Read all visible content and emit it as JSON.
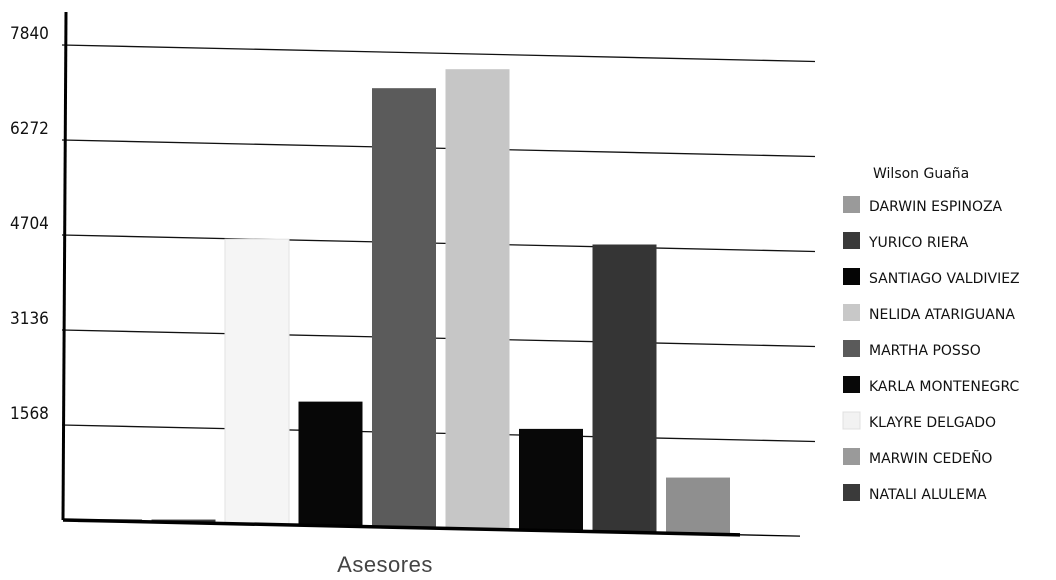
{
  "chart_data": {
    "type": "bar",
    "xlabel": "Asesores",
    "ylabel": "",
    "ylim": [
      0,
      7840
    ],
    "yticks": [
      1568,
      3136,
      4704,
      6272,
      7840
    ],
    "grid": true,
    "legend_title": "Wilson Guaña",
    "legend_position": "right",
    "series": [
      {
        "name": "DARWIN ESPINOZA",
        "values": [
          30
        ],
        "color": "#8e8e8e"
      },
      {
        "name": "YURICO RIERA",
        "values": [
          50
        ],
        "color": "#3c3c3c"
      },
      {
        "name": "SANTIAGO VALDIVIEZ",
        "values": [
          4704
        ],
        "color": "#f5f5f5"
      },
      {
        "name": "NELIDA ATARIGUANA",
        "values": [
          2050
        ],
        "color": "#070707"
      },
      {
        "name": "MARTHA POSSO",
        "values": [
          7250
        ],
        "color": "#5b5b5b"
      },
      {
        "name": "KARLA MONTENEGRC",
        "values": [
          7590
        ],
        "color": "#c6c6c6"
      },
      {
        "name": "KLAYRE DELGADO",
        "values": [
          1680
        ],
        "color": "#080808"
      },
      {
        "name": "MARWIN CEDEÑO",
        "values": [
          4750
        ],
        "color": "#353535"
      },
      {
        "name": "NATALI ALULEMA",
        "values": [
          930
        ],
        "color": "#8f8f8f"
      }
    ],
    "legend": [
      {
        "label": "DARWIN ESPINOZA",
        "color": "#9a9a9a"
      },
      {
        "label": "YURICO RIERA",
        "color": "#3a3a3a"
      },
      {
        "label": "SANTIAGO VALDIVIEZ",
        "color": "#050505"
      },
      {
        "label": "NELIDA ATARIGUANA",
        "color": "#c8c8c8"
      },
      {
        "label": "MARTHA POSSO",
        "color": "#5a5a5a"
      },
      {
        "label": "KARLA MONTENEGRC",
        "color": "#080808"
      },
      {
        "label": "KLAYRE DELGADO",
        "color": "#f2f2f2"
      },
      {
        "label": "MARWIN CEDEÑO",
        "color": "#9a9a9a"
      },
      {
        "label": "NATALI ALULEMA",
        "color": "#3a3a3a"
      }
    ]
  }
}
